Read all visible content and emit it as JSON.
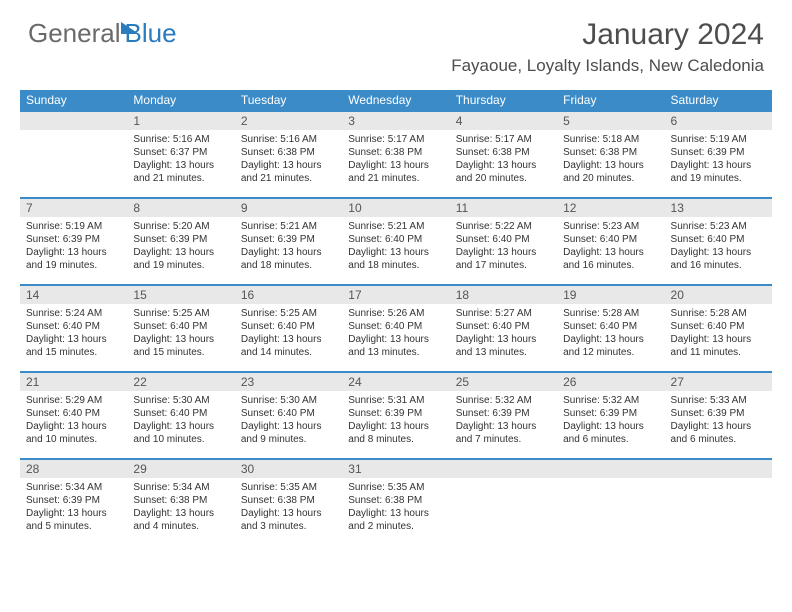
{
  "brand": {
    "part1": "General",
    "part2": "Blue"
  },
  "title": "January 2024",
  "location": "Fayaoue, Loyalty Islands, New Caledonia",
  "colors": {
    "header_bg": "#3b8bc9",
    "header_text": "#ffffff",
    "daynum_bg": "#e8e8e8",
    "text": "#333333",
    "logo_gray": "#6a6a6a",
    "logo_blue": "#2b7bbf"
  },
  "day_names": [
    "Sunday",
    "Monday",
    "Tuesday",
    "Wednesday",
    "Thursday",
    "Friday",
    "Saturday"
  ],
  "weeks": [
    [
      null,
      {
        "n": "1",
        "sr": "Sunrise: 5:16 AM",
        "ss": "Sunset: 6:37 PM",
        "d1": "Daylight: 13 hours",
        "d2": "and 21 minutes."
      },
      {
        "n": "2",
        "sr": "Sunrise: 5:16 AM",
        "ss": "Sunset: 6:38 PM",
        "d1": "Daylight: 13 hours",
        "d2": "and 21 minutes."
      },
      {
        "n": "3",
        "sr": "Sunrise: 5:17 AM",
        "ss": "Sunset: 6:38 PM",
        "d1": "Daylight: 13 hours",
        "d2": "and 21 minutes."
      },
      {
        "n": "4",
        "sr": "Sunrise: 5:17 AM",
        "ss": "Sunset: 6:38 PM",
        "d1": "Daylight: 13 hours",
        "d2": "and 20 minutes."
      },
      {
        "n": "5",
        "sr": "Sunrise: 5:18 AM",
        "ss": "Sunset: 6:38 PM",
        "d1": "Daylight: 13 hours",
        "d2": "and 20 minutes."
      },
      {
        "n": "6",
        "sr": "Sunrise: 5:19 AM",
        "ss": "Sunset: 6:39 PM",
        "d1": "Daylight: 13 hours",
        "d2": "and 19 minutes."
      }
    ],
    [
      {
        "n": "7",
        "sr": "Sunrise: 5:19 AM",
        "ss": "Sunset: 6:39 PM",
        "d1": "Daylight: 13 hours",
        "d2": "and 19 minutes."
      },
      {
        "n": "8",
        "sr": "Sunrise: 5:20 AM",
        "ss": "Sunset: 6:39 PM",
        "d1": "Daylight: 13 hours",
        "d2": "and 19 minutes."
      },
      {
        "n": "9",
        "sr": "Sunrise: 5:21 AM",
        "ss": "Sunset: 6:39 PM",
        "d1": "Daylight: 13 hours",
        "d2": "and 18 minutes."
      },
      {
        "n": "10",
        "sr": "Sunrise: 5:21 AM",
        "ss": "Sunset: 6:40 PM",
        "d1": "Daylight: 13 hours",
        "d2": "and 18 minutes."
      },
      {
        "n": "11",
        "sr": "Sunrise: 5:22 AM",
        "ss": "Sunset: 6:40 PM",
        "d1": "Daylight: 13 hours",
        "d2": "and 17 minutes."
      },
      {
        "n": "12",
        "sr": "Sunrise: 5:23 AM",
        "ss": "Sunset: 6:40 PM",
        "d1": "Daylight: 13 hours",
        "d2": "and 16 minutes."
      },
      {
        "n": "13",
        "sr": "Sunrise: 5:23 AM",
        "ss": "Sunset: 6:40 PM",
        "d1": "Daylight: 13 hours",
        "d2": "and 16 minutes."
      }
    ],
    [
      {
        "n": "14",
        "sr": "Sunrise: 5:24 AM",
        "ss": "Sunset: 6:40 PM",
        "d1": "Daylight: 13 hours",
        "d2": "and 15 minutes."
      },
      {
        "n": "15",
        "sr": "Sunrise: 5:25 AM",
        "ss": "Sunset: 6:40 PM",
        "d1": "Daylight: 13 hours",
        "d2": "and 15 minutes."
      },
      {
        "n": "16",
        "sr": "Sunrise: 5:25 AM",
        "ss": "Sunset: 6:40 PM",
        "d1": "Daylight: 13 hours",
        "d2": "and 14 minutes."
      },
      {
        "n": "17",
        "sr": "Sunrise: 5:26 AM",
        "ss": "Sunset: 6:40 PM",
        "d1": "Daylight: 13 hours",
        "d2": "and 13 minutes."
      },
      {
        "n": "18",
        "sr": "Sunrise: 5:27 AM",
        "ss": "Sunset: 6:40 PM",
        "d1": "Daylight: 13 hours",
        "d2": "and 13 minutes."
      },
      {
        "n": "19",
        "sr": "Sunrise: 5:28 AM",
        "ss": "Sunset: 6:40 PM",
        "d1": "Daylight: 13 hours",
        "d2": "and 12 minutes."
      },
      {
        "n": "20",
        "sr": "Sunrise: 5:28 AM",
        "ss": "Sunset: 6:40 PM",
        "d1": "Daylight: 13 hours",
        "d2": "and 11 minutes."
      }
    ],
    [
      {
        "n": "21",
        "sr": "Sunrise: 5:29 AM",
        "ss": "Sunset: 6:40 PM",
        "d1": "Daylight: 13 hours",
        "d2": "and 10 minutes."
      },
      {
        "n": "22",
        "sr": "Sunrise: 5:30 AM",
        "ss": "Sunset: 6:40 PM",
        "d1": "Daylight: 13 hours",
        "d2": "and 10 minutes."
      },
      {
        "n": "23",
        "sr": "Sunrise: 5:30 AM",
        "ss": "Sunset: 6:40 PM",
        "d1": "Daylight: 13 hours",
        "d2": "and 9 minutes."
      },
      {
        "n": "24",
        "sr": "Sunrise: 5:31 AM",
        "ss": "Sunset: 6:39 PM",
        "d1": "Daylight: 13 hours",
        "d2": "and 8 minutes."
      },
      {
        "n": "25",
        "sr": "Sunrise: 5:32 AM",
        "ss": "Sunset: 6:39 PM",
        "d1": "Daylight: 13 hours",
        "d2": "and 7 minutes."
      },
      {
        "n": "26",
        "sr": "Sunrise: 5:32 AM",
        "ss": "Sunset: 6:39 PM",
        "d1": "Daylight: 13 hours",
        "d2": "and 6 minutes."
      },
      {
        "n": "27",
        "sr": "Sunrise: 5:33 AM",
        "ss": "Sunset: 6:39 PM",
        "d1": "Daylight: 13 hours",
        "d2": "and 6 minutes."
      }
    ],
    [
      {
        "n": "28",
        "sr": "Sunrise: 5:34 AM",
        "ss": "Sunset: 6:39 PM",
        "d1": "Daylight: 13 hours",
        "d2": "and 5 minutes."
      },
      {
        "n": "29",
        "sr": "Sunrise: 5:34 AM",
        "ss": "Sunset: 6:38 PM",
        "d1": "Daylight: 13 hours",
        "d2": "and 4 minutes."
      },
      {
        "n": "30",
        "sr": "Sunrise: 5:35 AM",
        "ss": "Sunset: 6:38 PM",
        "d1": "Daylight: 13 hours",
        "d2": "and 3 minutes."
      },
      {
        "n": "31",
        "sr": "Sunrise: 5:35 AM",
        "ss": "Sunset: 6:38 PM",
        "d1": "Daylight: 13 hours",
        "d2": "and 2 minutes."
      },
      null,
      null,
      null
    ]
  ]
}
